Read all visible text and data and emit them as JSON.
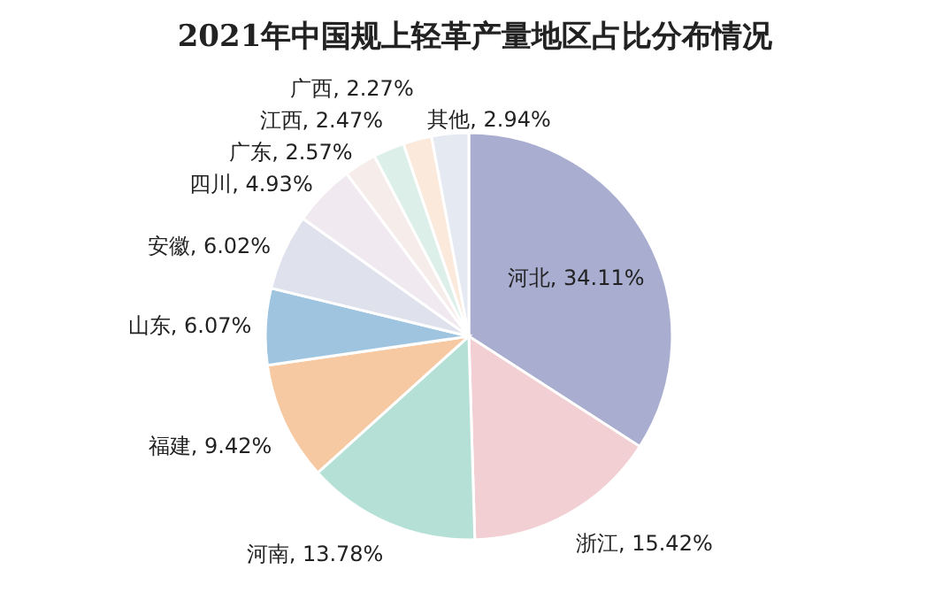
{
  "chart_data": {
    "type": "pie",
    "title": "2021年中国规上轻革产量地区占比分布情况",
    "categories": [
      "河北",
      "浙江",
      "河南",
      "福建",
      "山东",
      "安徽",
      "四川",
      "广东",
      "江西",
      "广西",
      "其他"
    ],
    "values": [
      34.11,
      15.42,
      13.78,
      9.42,
      6.07,
      6.02,
      4.93,
      2.57,
      2.47,
      2.27,
      2.94
    ],
    "value_labels": [
      "34.11%",
      "15.42%",
      "13.78%",
      "9.42%",
      "6.07%",
      "6.02%",
      "4.93%",
      "2.57%",
      "2.47%",
      "2.27%",
      "2.94%"
    ],
    "colors": [
      "#a9aed0",
      "#f2cfd3",
      "#b5e0d6",
      "#f6c9a2",
      "#9ec4e0",
      "#dfe2ec",
      "#f1e9f0",
      "#f6ecea",
      "#dcefe9",
      "#fbe9dc",
      "#e5e9f1"
    ],
    "legend": false
  }
}
